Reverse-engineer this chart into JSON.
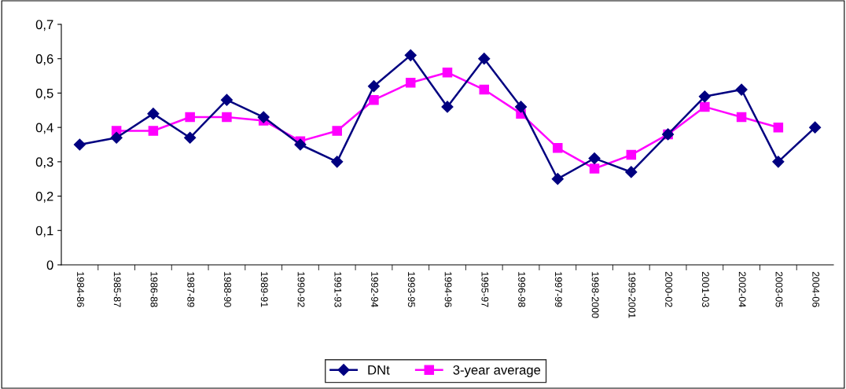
{
  "chart_data": {
    "type": "line",
    "categories": [
      "1984-86",
      "1985-87",
      "1986-88",
      "1987-89",
      "1988-90",
      "1989-91",
      "1990-92",
      "1991-93",
      "1992-94",
      "1993-95",
      "1994-96",
      "1995-97",
      "1996-98",
      "1997-99",
      "1998-2000",
      "1999-2001",
      "2000-02",
      "2001-03",
      "2002-04",
      "2003-05",
      "2004-06"
    ],
    "series": [
      {
        "name": "DNt",
        "color": "#000080",
        "marker": "diamond",
        "values": [
          0.35,
          0.37,
          0.44,
          0.37,
          0.48,
          0.43,
          0.35,
          0.3,
          0.52,
          0.61,
          0.46,
          0.6,
          0.46,
          0.25,
          0.31,
          0.27,
          0.38,
          0.49,
          0.51,
          0.3,
          0.4
        ]
      },
      {
        "name": "3-year average",
        "color": "#ff00ff",
        "marker": "square",
        "values": [
          null,
          0.39,
          0.39,
          0.43,
          0.43,
          0.42,
          0.36,
          0.39,
          0.48,
          0.53,
          0.56,
          0.51,
          0.44,
          0.34,
          0.28,
          0.32,
          0.38,
          0.46,
          0.43,
          0.4,
          null
        ]
      }
    ],
    "ylim": [
      0,
      0.7
    ],
    "yticks": [
      0,
      {
        "value": 0.1,
        "label": "0,1"
      },
      {
        "value": 0.2,
        "label": "0,2"
      },
      {
        "value": 0.3,
        "label": "0,3"
      },
      {
        "value": 0.4,
        "label": "0,4"
      },
      {
        "value": 0.5,
        "label": "0,5"
      },
      {
        "value": 0.6,
        "label": "0,6"
      },
      {
        "value": 0.7,
        "label": "0,7"
      }
    ],
    "grid": false,
    "legend": "bottom"
  }
}
